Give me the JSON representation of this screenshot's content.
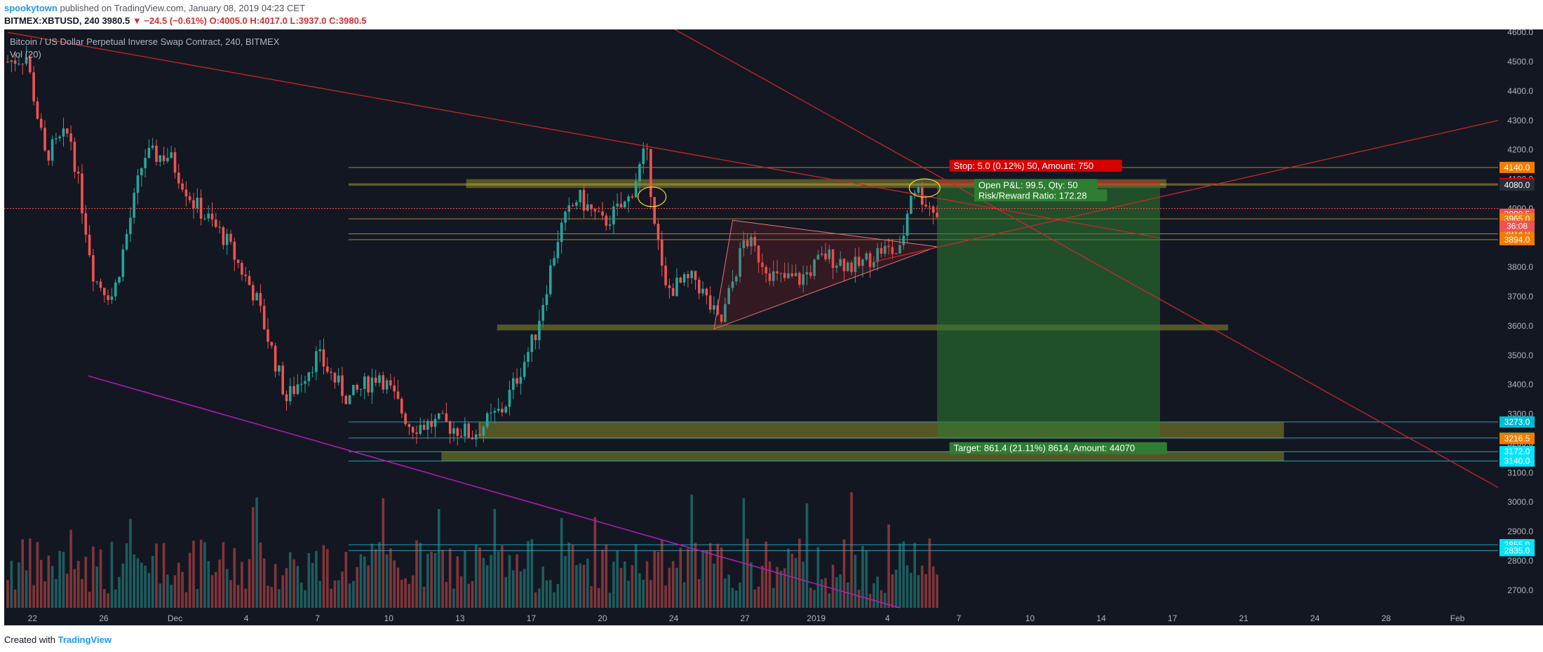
{
  "header": {
    "author": "spookytown",
    "published": "published on TradingView.com, January 08, 2019 04:23 CET",
    "symbol_line_prefix": "BITMEX:XBTUSD, 240",
    "last": "3980.5",
    "change": "▼ −24.5 (−0.61%)",
    "ohlc_open": "O:4005.0",
    "ohlc_high": "H:4017.0",
    "ohlc_low": "L:3937.0",
    "ohlc_close": "C:3980.5"
  },
  "overlay": {
    "title": "Bitcoin / US Dollar Perpetual Inverse Swap Contract, 240, BITMEX",
    "volume_label": "Vol (20)"
  },
  "footer": {
    "created_with": "Created with",
    "logo": "TradingView"
  },
  "colors": {
    "background": "#131722",
    "up": "#26a69a",
    "down": "#ef5350",
    "trendline": "#c62828",
    "support_line": "#b71cb7",
    "zone_fill": "#8d8a2a",
    "target_zone": "#2e7d32",
    "axis_text": "#b2b5be"
  },
  "chart_data": {
    "type": "candlestick",
    "x_axis_ticks": [
      "22",
      "26",
      "Dec",
      "4",
      "7",
      "10",
      "13",
      "17",
      "20",
      "24",
      "27",
      "2019",
      "4",
      "7",
      "10",
      "14",
      "17",
      "21",
      "24",
      "28",
      "Feb"
    ],
    "y_axis_ticks": [
      2700,
      2800,
      2900,
      3000,
      3100,
      3200,
      3300,
      3400,
      3500,
      3600,
      3700,
      3800,
      4000,
      4100,
      4200,
      4300,
      4400,
      4500,
      4600
    ],
    "ylim": [
      2640,
      4610
    ],
    "price_series_anchors": [
      {
        "t": 0,
        "p": 4500
      },
      {
        "t": 3,
        "p": 4520
      },
      {
        "t": 6,
        "p": 4180
      },
      {
        "t": 10,
        "p": 4260
      },
      {
        "t": 14,
        "p": 3760
      },
      {
        "t": 17,
        "p": 3700
      },
      {
        "t": 22,
        "p": 4180
      },
      {
        "t": 26,
        "p": 4180
      },
      {
        "t": 30,
        "p": 4020
      },
      {
        "t": 35,
        "p": 3900
      },
      {
        "t": 40,
        "p": 3700
      },
      {
        "t": 45,
        "p": 3350
      },
      {
        "t": 50,
        "p": 3500
      },
      {
        "t": 55,
        "p": 3350
      },
      {
        "t": 60,
        "p": 3440
      },
      {
        "t": 65,
        "p": 3260
      },
      {
        "t": 70,
        "p": 3270
      },
      {
        "t": 75,
        "p": 3230
      },
      {
        "t": 80,
        "p": 3320
      },
      {
        "t": 85,
        "p": 3560
      },
      {
        "t": 89,
        "p": 3920
      },
      {
        "t": 92,
        "p": 4040
      },
      {
        "t": 96,
        "p": 3950
      },
      {
        "t": 100,
        "p": 4020
      },
      {
        "t": 103,
        "p": 4200
      },
      {
        "t": 106,
        "p": 3720
      },
      {
        "t": 111,
        "p": 3760
      },
      {
        "t": 115,
        "p": 3600
      },
      {
        "t": 119,
        "p": 3900
      },
      {
        "t": 124,
        "p": 3760
      },
      {
        "t": 128,
        "p": 3760
      },
      {
        "t": 132,
        "p": 3840
      },
      {
        "t": 137,
        "p": 3800
      },
      {
        "t": 141,
        "p": 3860
      },
      {
        "t": 144,
        "p": 3850
      },
      {
        "t": 146,
        "p": 4080
      },
      {
        "t": 150,
        "p": 3980
      }
    ],
    "price_labels": [
      {
        "value": 4140.0,
        "text": "4140.0",
        "color": "#f57c00"
      },
      {
        "value": 4084.0,
        "text": "4084.0",
        "color": "#f57c00"
      },
      {
        "value": 4085.0,
        "text": "4085.0",
        "color": "#d50000"
      },
      {
        "value": 4080.0,
        "text": "4080.0",
        "color": "#2a2e39"
      },
      {
        "value": 3980.5,
        "text": "3980.5",
        "color": "#ef5350"
      },
      {
        "value": 3965.0,
        "text": "3965.0",
        "color": "#f57c00"
      },
      {
        "value": 3914.0,
        "text": "3914.0",
        "color": "#f57c00"
      },
      {
        "value": 3894.0,
        "text": "3894.0",
        "color": "#f57c00"
      },
      {
        "value": 3273.0,
        "text": "3273.0",
        "color": "#00bcd4"
      },
      {
        "value": 3218.6,
        "text": "3218.6",
        "color": "#2e7d32"
      },
      {
        "value": 3216.5,
        "text": "3216.5",
        "color": "#f57c00"
      },
      {
        "value": 3172.0,
        "text": "3172.0",
        "color": "#00e5ff"
      },
      {
        "value": 3140.0,
        "text": "3140.0",
        "color": "#00e5ff"
      },
      {
        "value": 2855.0,
        "text": "2855.0",
        "color": "#00e5ff"
      },
      {
        "value": 2835.0,
        "text": "2835.0",
        "color": "#00e5ff"
      }
    ],
    "countdown_label": "36:08",
    "horizontal_levels": [
      4140,
      4084,
      4080,
      3965,
      3914,
      3894,
      3273,
      3218.6,
      3172,
      3140,
      2855,
      2835
    ],
    "zones": [
      {
        "from": 4070,
        "to": 4100
      },
      {
        "from": 3585,
        "to": 3605
      },
      {
        "from": 3216.5,
        "to": 3273
      },
      {
        "from": 3140,
        "to": 3172
      }
    ],
    "position": {
      "stop_label": "Stop: 5.0 (0.12%) 50, Amount: 750",
      "pnl_label": "Open P&L: 99.5, Qty: 50",
      "rr_label": "Risk/Reward Ratio: 172.28",
      "target_label": "Target: 861.4 (21.11%) 8614, Amount: 44070",
      "entry": 4080,
      "stop": 4085,
      "target": 3218.6
    },
    "volume_indicator": "Vol (20)"
  }
}
